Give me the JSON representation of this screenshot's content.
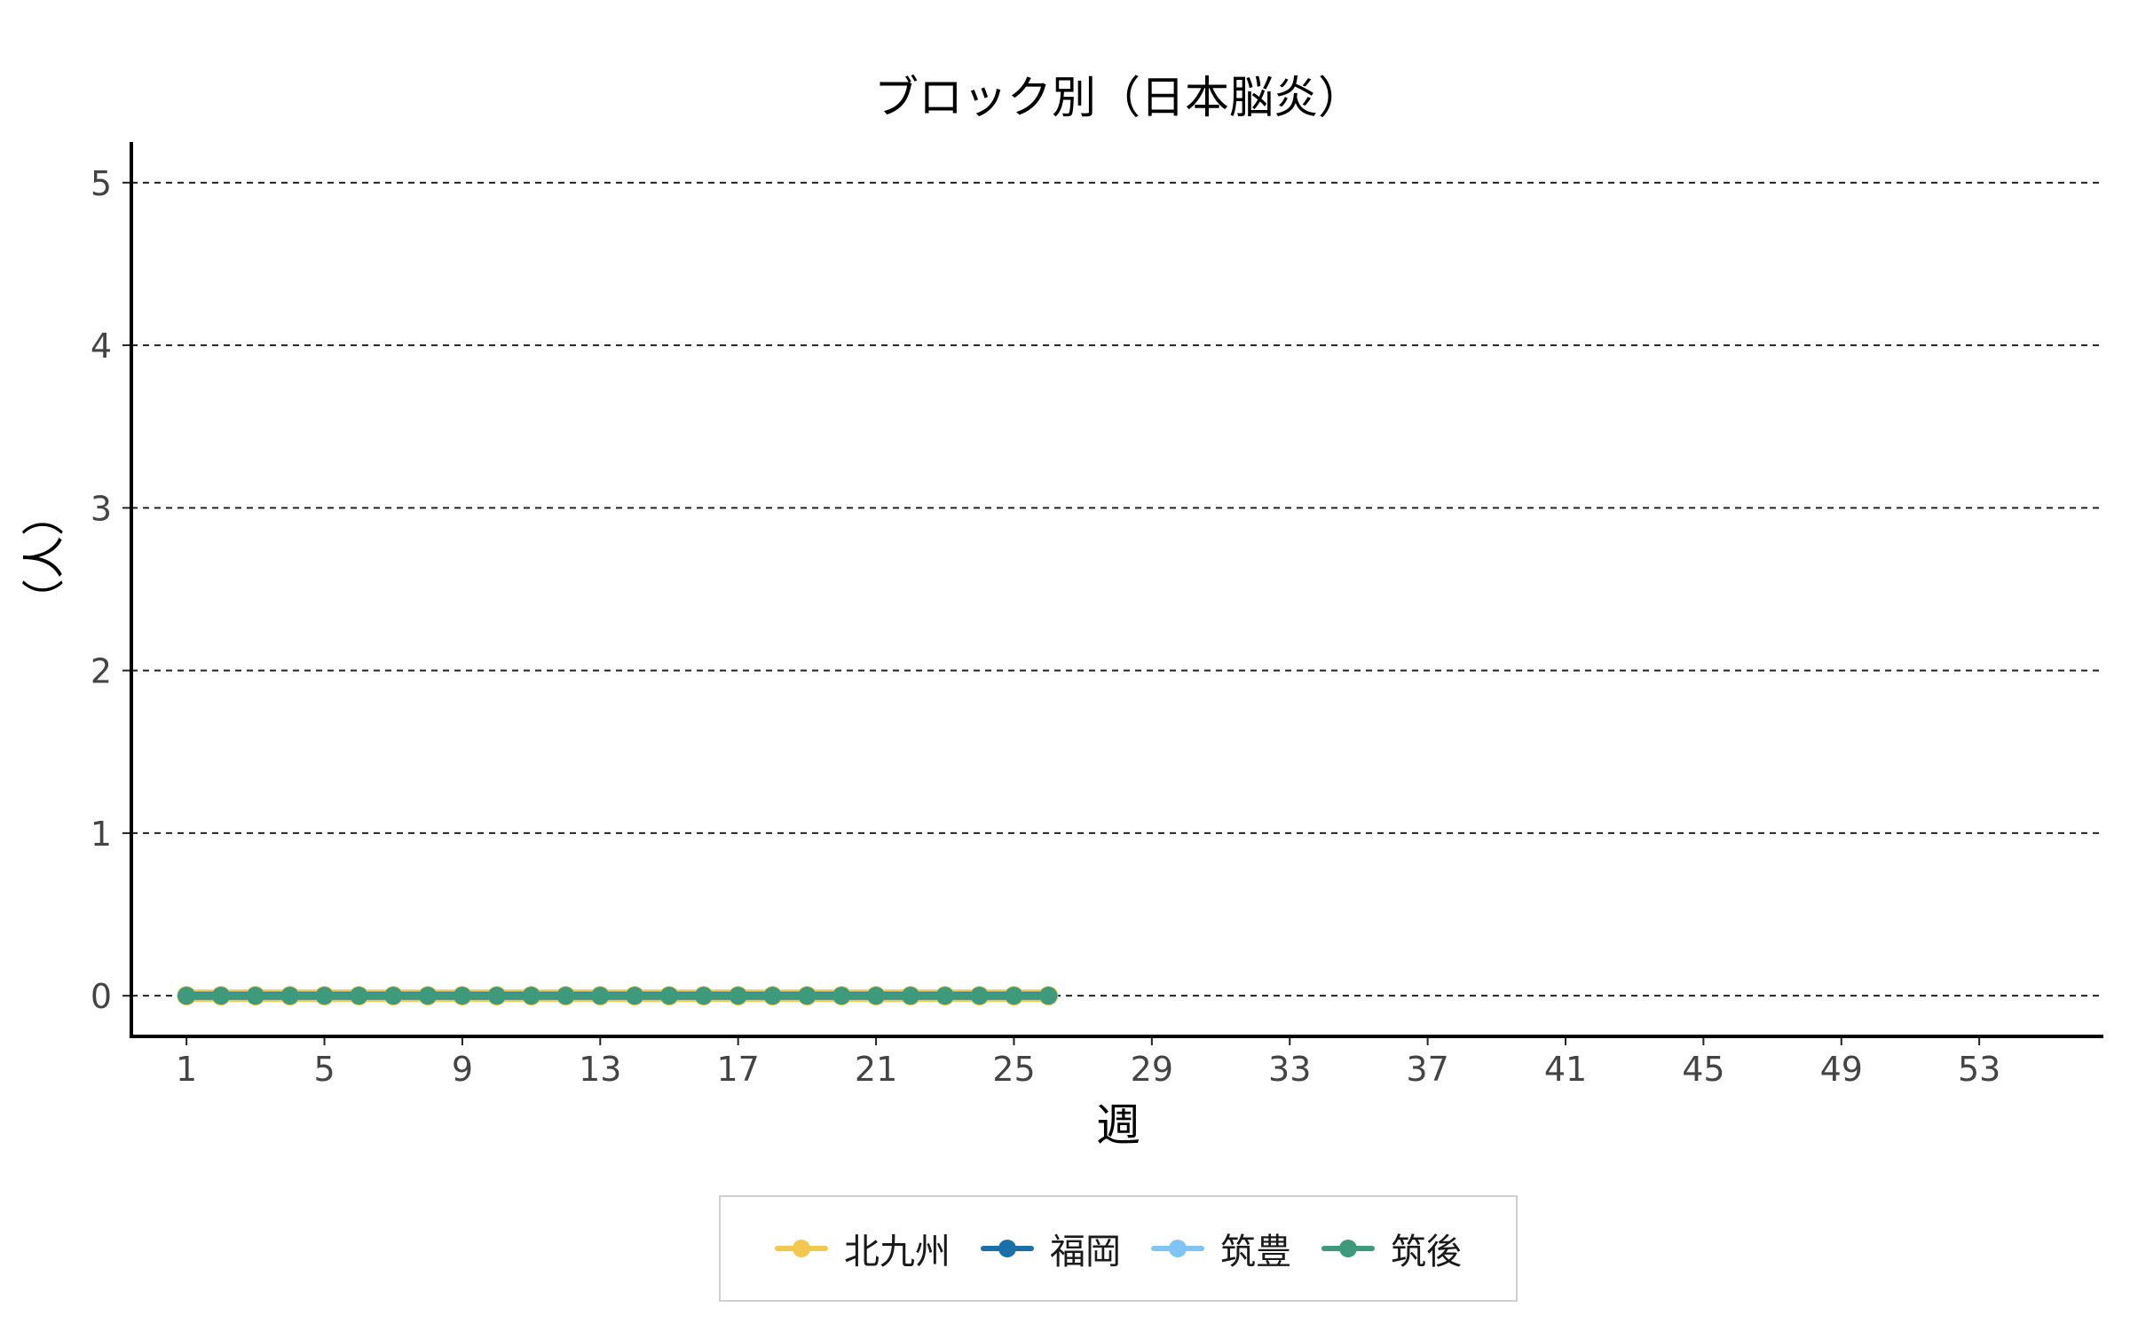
{
  "chart_data": {
    "type": "line",
    "title": "ブロック別（日本脳炎）",
    "xlabel": "週",
    "ylabel": "（人）",
    "xlim": [
      -0.6,
      56.6
    ],
    "ylim": [
      -0.25,
      5.25
    ],
    "x_ticks": [
      1,
      5,
      9,
      13,
      17,
      21,
      25,
      29,
      33,
      37,
      41,
      45,
      49,
      53
    ],
    "y_ticks": [
      0,
      1,
      2,
      3,
      4,
      5
    ],
    "grid": "horizontal dashed",
    "legend_position": "bottom",
    "x": [
      1,
      2,
      3,
      4,
      5,
      6,
      7,
      8,
      9,
      10,
      11,
      12,
      13,
      14,
      15,
      16,
      17,
      18,
      19,
      20,
      21,
      22,
      23,
      24,
      25,
      26
    ],
    "series": [
      {
        "name": "北九州",
        "color": "#f2c94c",
        "values": [
          0,
          0,
          0,
          0,
          0,
          0,
          0,
          0,
          0,
          0,
          0,
          0,
          0,
          0,
          0,
          0,
          0,
          0,
          0,
          0,
          0,
          0,
          0,
          0,
          0,
          0
        ]
      },
      {
        "name": "福岡",
        "color": "#1a6fa8",
        "values": [
          0,
          0,
          0,
          0,
          0,
          0,
          0,
          0,
          0,
          0,
          0,
          0,
          0,
          0,
          0,
          0,
          0,
          0,
          0,
          0,
          0,
          0,
          0,
          0,
          0,
          0
        ]
      },
      {
        "name": "筑豊",
        "color": "#7fc4f5",
        "values": [
          0,
          0,
          0,
          0,
          0,
          0,
          0,
          0,
          0,
          0,
          0,
          0,
          0,
          0,
          0,
          0,
          0,
          0,
          0,
          0,
          0,
          0,
          0,
          0,
          0,
          0
        ]
      },
      {
        "name": "筑後",
        "color": "#3d9a7a",
        "values": [
          0,
          0,
          0,
          0,
          0,
          0,
          0,
          0,
          0,
          0,
          0,
          0,
          0,
          0,
          0,
          0,
          0,
          0,
          0,
          0,
          0,
          0,
          0,
          0,
          0,
          0
        ]
      }
    ]
  }
}
